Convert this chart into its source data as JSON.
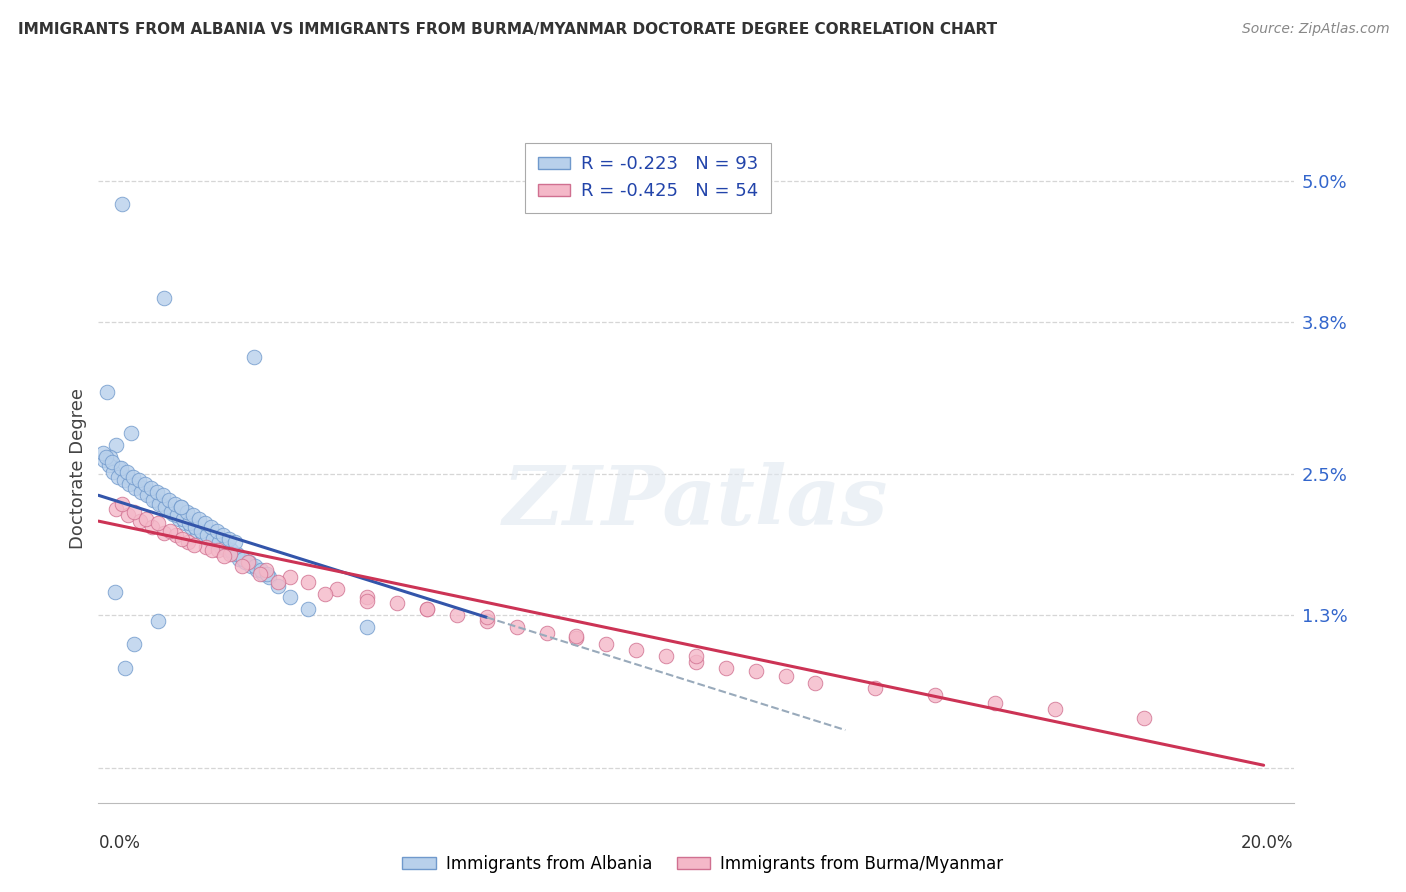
{
  "title": "IMMIGRANTS FROM ALBANIA VS IMMIGRANTS FROM BURMA/MYANMAR DOCTORATE DEGREE CORRELATION CHART",
  "source": "Source: ZipAtlas.com",
  "ylabel": "Doctorate Degree",
  "series1_label": "Immigrants from Albania",
  "series2_label": "Immigrants from Burma/Myanmar",
  "series1_color": "#b8d0eb",
  "series2_color": "#f4b8c8",
  "series1_edge": "#7099cc",
  "series2_edge": "#d07090",
  "trendline1_color": "#3355aa",
  "trendline2_color": "#cc3355",
  "trendline1_dashed_color": "#99aabb",
  "background_color": "#ffffff",
  "legend_label1": "R = -0.223   N = 93",
  "legend_label2": "R = -0.425   N = 54",
  "legend_text_color": "#2244aa",
  "ytick_color": "#3366cc",
  "xlim": [
    0.0,
    20.0
  ],
  "ylim": [
    -0.3,
    5.4
  ],
  "ytick_positions": [
    0.0,
    1.3,
    2.5,
    3.8,
    5.0
  ],
  "ytick_labels": [
    "",
    "1.3%",
    "2.5%",
    "3.8%",
    "5.0%"
  ],
  "watermark_text": "ZIPatlas",
  "s1_x": [
    0.4,
    1.1,
    2.6,
    0.15,
    0.55,
    0.3,
    0.2,
    0.35,
    0.5,
    0.65,
    0.75,
    0.85,
    0.95,
    1.05,
    1.15,
    1.25,
    1.35,
    1.45,
    1.55,
    1.65,
    1.75,
    1.85,
    1.95,
    2.05,
    2.15,
    2.25,
    2.35,
    2.45,
    2.55,
    2.65,
    2.75,
    2.85,
    0.1,
    0.18,
    0.25,
    0.32,
    0.42,
    0.52,
    0.62,
    0.72,
    0.82,
    0.92,
    1.02,
    1.12,
    1.22,
    1.32,
    1.42,
    1.52,
    1.62,
    1.72,
    1.82,
    1.92,
    2.02,
    2.12,
    2.22,
    2.32,
    2.42,
    2.52,
    2.62,
    2.72,
    2.82,
    3.0,
    3.2,
    3.5,
    0.08,
    0.12,
    0.22,
    0.38,
    0.48,
    0.58,
    0.68,
    0.78,
    0.88,
    0.98,
    1.08,
    1.18,
    1.28,
    1.38,
    1.48,
    1.58,
    1.68,
    1.78,
    1.88,
    1.98,
    2.08,
    2.18,
    2.28,
    4.5,
    1.38,
    0.45,
    0.6,
    1.0,
    0.28
  ],
  "s1_y": [
    4.8,
    4.0,
    3.5,
    3.2,
    2.85,
    2.75,
    2.65,
    2.55,
    2.48,
    2.42,
    2.38,
    2.32,
    2.28,
    2.25,
    2.2,
    2.16,
    2.12,
    2.08,
    2.05,
    2.02,
    1.98,
    1.95,
    1.92,
    1.88,
    1.85,
    1.82,
    1.78,
    1.75,
    1.72,
    1.68,
    1.65,
    1.62,
    2.62,
    2.58,
    2.52,
    2.48,
    2.45,
    2.42,
    2.38,
    2.35,
    2.32,
    2.28,
    2.25,
    2.22,
    2.18,
    2.15,
    2.12,
    2.08,
    2.05,
    2.02,
    1.98,
    1.95,
    1.92,
    1.88,
    1.85,
    1.82,
    1.78,
    1.75,
    1.72,
    1.68,
    1.65,
    1.55,
    1.45,
    1.35,
    2.68,
    2.65,
    2.6,
    2.55,
    2.52,
    2.48,
    2.45,
    2.42,
    2.38,
    2.35,
    2.32,
    2.28,
    2.25,
    2.22,
    2.18,
    2.15,
    2.12,
    2.08,
    2.05,
    2.02,
    1.98,
    1.95,
    1.92,
    1.2,
    2.22,
    0.85,
    1.05,
    1.25,
    1.5
  ],
  "s2_x": [
    0.3,
    0.5,
    0.7,
    0.9,
    1.1,
    1.3,
    1.5,
    1.8,
    2.0,
    2.2,
    2.5,
    2.8,
    3.2,
    3.5,
    4.0,
    4.5,
    5.0,
    5.5,
    6.0,
    6.5,
    7.0,
    7.5,
    8.0,
    8.5,
    9.0,
    9.5,
    10.0,
    10.5,
    11.0,
    11.5,
    12.0,
    13.0,
    14.0,
    15.0,
    16.0,
    17.5,
    0.4,
    0.6,
    0.8,
    1.0,
    1.2,
    1.4,
    1.6,
    1.9,
    2.1,
    2.4,
    2.7,
    3.0,
    3.8,
    4.5,
    5.5,
    6.5,
    8.0,
    10.0
  ],
  "s2_y": [
    2.2,
    2.15,
    2.1,
    2.05,
    2.0,
    1.98,
    1.92,
    1.88,
    1.85,
    1.82,
    1.75,
    1.68,
    1.62,
    1.58,
    1.52,
    1.45,
    1.4,
    1.35,
    1.3,
    1.25,
    1.2,
    1.15,
    1.1,
    1.05,
    1.0,
    0.95,
    0.9,
    0.85,
    0.82,
    0.78,
    0.72,
    0.68,
    0.62,
    0.55,
    0.5,
    0.42,
    2.25,
    2.18,
    2.12,
    2.08,
    2.02,
    1.95,
    1.9,
    1.85,
    1.8,
    1.72,
    1.65,
    1.58,
    1.48,
    1.42,
    1.35,
    1.28,
    1.12,
    0.95
  ],
  "tl1_x0": 0.0,
  "tl1_x1": 6.5,
  "tl1_y0": 2.32,
  "tl1_y1": 1.28,
  "tl1_dash_x0": 6.5,
  "tl1_dash_x1": 12.5,
  "tl1_dash_y0": 1.28,
  "tl1_dash_y1": 0.32,
  "tl2_x0": 0.0,
  "tl2_x1": 19.5,
  "tl2_y0": 2.1,
  "tl2_y1": 0.02
}
